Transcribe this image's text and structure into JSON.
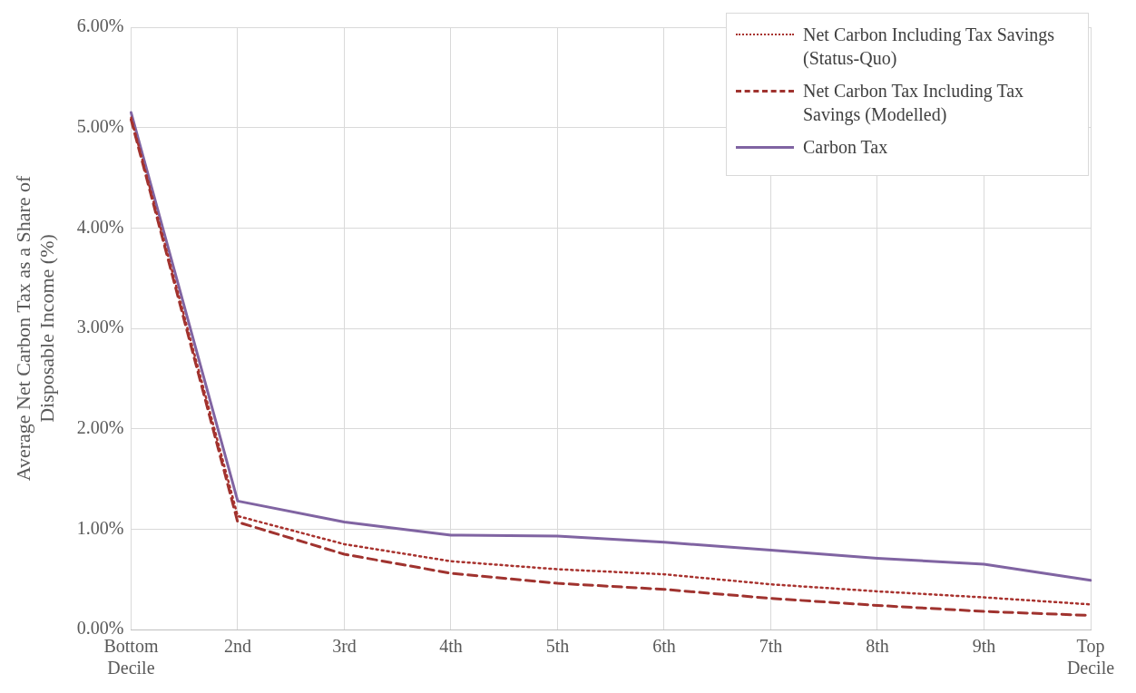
{
  "chart_data": {
    "type": "line",
    "ylabel": "Average Net Carbon Tax as a Share of Disposable Income (%)",
    "categories": [
      "Bottom Decile",
      "2nd",
      "3rd",
      "4th",
      "5th",
      "6th",
      "7th",
      "8th",
      "9th",
      "Top Decile"
    ],
    "series": [
      {
        "name": "Net Carbon Including Tax Savings (Status-Quo)",
        "color": "#a8322e",
        "line_style": "dotted",
        "values": [
          5.1,
          1.13,
          0.85,
          0.68,
          0.6,
          0.55,
          0.45,
          0.38,
          0.32,
          0.25
        ]
      },
      {
        "name": "Net Carbon Tax Including Tax Savings (Modelled)",
        "color": "#a0332f",
        "line_style": "dashed",
        "values": [
          5.08,
          1.07,
          0.75,
          0.56,
          0.46,
          0.4,
          0.31,
          0.24,
          0.18,
          0.14
        ]
      },
      {
        "name": "Carbon Tax",
        "color": "#8064a2",
        "line_style": "solid",
        "values": [
          5.15,
          1.28,
          1.07,
          0.94,
          0.93,
          0.87,
          0.79,
          0.71,
          0.65,
          0.49
        ]
      }
    ],
    "ylim": [
      0,
      6
    ],
    "yticks": [
      {
        "value": 0,
        "label": "0.00%"
      },
      {
        "value": 1,
        "label": "1.00%"
      },
      {
        "value": 2,
        "label": "2.00%"
      },
      {
        "value": 3,
        "label": "3.00%"
      },
      {
        "value": 4,
        "label": "4.00%"
      },
      {
        "value": 5,
        "label": "5.00%"
      },
      {
        "value": 6,
        "label": "6.00%"
      }
    ],
    "grid": true,
    "legend": "top right",
    "marker": "none"
  }
}
